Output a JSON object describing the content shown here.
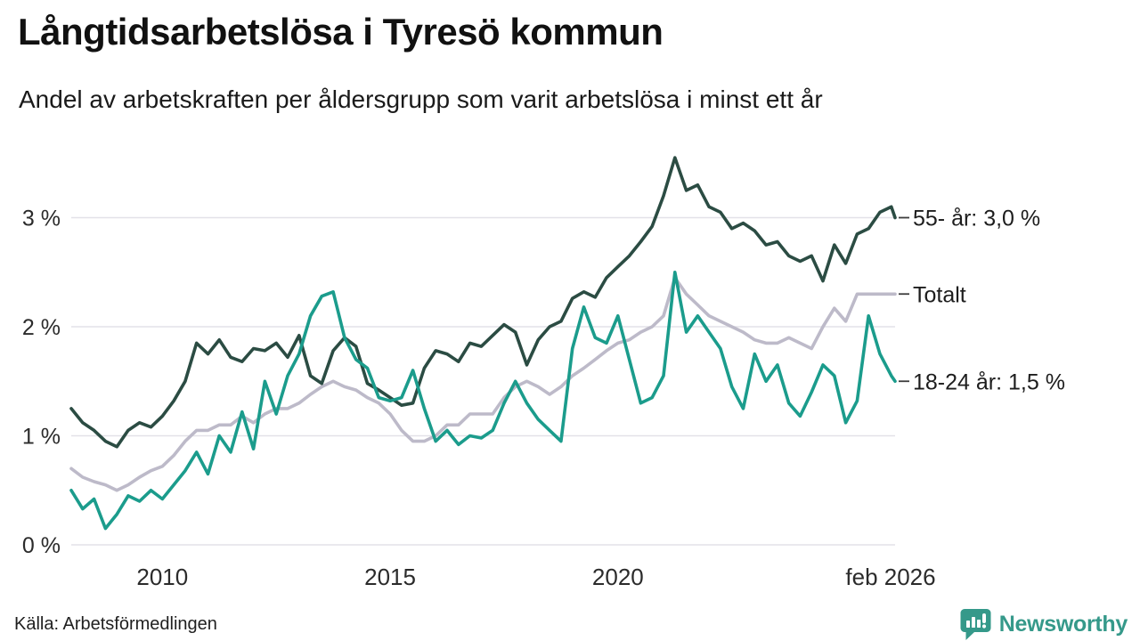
{
  "header": {
    "title": "Långtidsarbetslösa i Tyresö kommun",
    "subtitle": "Andel av arbetskraften per åldersgrupp som varit arbetslösa i minst ett år"
  },
  "footer": {
    "source": "Källa: Arbetsförmedlingen",
    "brand": "Newsworthy"
  },
  "colors": {
    "series_55": "#2b4c43",
    "series_total": "#bdbac9",
    "series_1824": "#1b9c8c",
    "grid": "#e3e2e8",
    "brand_teal": "#35998a",
    "end_dash": "#3c3c3c"
  },
  "chart_data": {
    "type": "line",
    "title": "Långtidsarbetslösa i Tyresö kommun",
    "subtitle": "Andel av arbetskraften per åldersgrupp som varit arbetslösa i minst ett år",
    "xlabel": "",
    "ylabel": "",
    "xlim": [
      2008.0,
      2026.083
    ],
    "ylim": [
      0,
      3.6
    ],
    "grid": "horizontal",
    "legend_position": "right-end-labels",
    "y_ticks": [
      {
        "value": 0,
        "label": "0 %"
      },
      {
        "value": 1,
        "label": "1 %"
      },
      {
        "value": 2,
        "label": "2 %"
      },
      {
        "value": 3,
        "label": "3 %"
      }
    ],
    "x_ticks": [
      {
        "value": 2010,
        "label": "2010"
      },
      {
        "value": 2015,
        "label": "2015"
      },
      {
        "value": 2020,
        "label": "2020"
      },
      {
        "value": 2026.083,
        "label": "feb 2026"
      }
    ],
    "x": [
      2008.0,
      2008.25,
      2008.5,
      2008.75,
      2009.0,
      2009.25,
      2009.5,
      2009.75,
      2010.0,
      2010.25,
      2010.5,
      2010.75,
      2011.0,
      2011.25,
      2011.5,
      2011.75,
      2012.0,
      2012.25,
      2012.5,
      2012.75,
      2013.0,
      2013.25,
      2013.5,
      2013.75,
      2014.0,
      2014.25,
      2014.5,
      2014.75,
      2015.0,
      2015.25,
      2015.5,
      2015.75,
      2016.0,
      2016.25,
      2016.5,
      2016.75,
      2017.0,
      2017.25,
      2017.5,
      2017.75,
      2018.0,
      2018.25,
      2018.5,
      2018.75,
      2019.0,
      2019.25,
      2019.5,
      2019.75,
      2020.0,
      2020.25,
      2020.5,
      2020.75,
      2021.0,
      2021.25,
      2021.5,
      2021.75,
      2022.0,
      2022.25,
      2022.5,
      2022.75,
      2023.0,
      2023.25,
      2023.5,
      2023.75,
      2024.0,
      2024.25,
      2024.5,
      2024.75,
      2025.0,
      2025.25,
      2025.5,
      2025.75,
      2026.0,
      2026.083
    ],
    "series": [
      {
        "name": "Totalt",
        "end_label": "Totalt",
        "end_value": 2.3,
        "color": "#bdbac9",
        "values": [
          0.7,
          0.62,
          0.58,
          0.55,
          0.5,
          0.55,
          0.62,
          0.68,
          0.72,
          0.82,
          0.95,
          1.05,
          1.05,
          1.1,
          1.1,
          1.18,
          1.12,
          1.2,
          1.25,
          1.25,
          1.3,
          1.38,
          1.45,
          1.5,
          1.45,
          1.42,
          1.35,
          1.3,
          1.2,
          1.05,
          0.95,
          0.95,
          1.0,
          1.1,
          1.1,
          1.2,
          1.2,
          1.2,
          1.35,
          1.45,
          1.5,
          1.45,
          1.38,
          1.45,
          1.55,
          1.62,
          1.7,
          1.78,
          1.85,
          1.88,
          1.95,
          2.0,
          2.1,
          2.45,
          2.3,
          2.2,
          2.1,
          2.05,
          2.0,
          1.95,
          1.88,
          1.85,
          1.85,
          1.9,
          1.85,
          1.8,
          2.0,
          2.17,
          2.05,
          2.3,
          2.3,
          2.3,
          2.3,
          2.3
        ]
      },
      {
        "name": "55- år",
        "end_label": "55- år: 3,0 %",
        "end_value": 3.0,
        "color": "#2b4c43",
        "values": [
          1.25,
          1.12,
          1.05,
          0.95,
          0.9,
          1.05,
          1.12,
          1.08,
          1.18,
          1.32,
          1.5,
          1.85,
          1.75,
          1.88,
          1.72,
          1.68,
          1.8,
          1.78,
          1.85,
          1.72,
          1.92,
          1.55,
          1.48,
          1.78,
          1.9,
          1.82,
          1.48,
          1.42,
          1.35,
          1.28,
          1.3,
          1.62,
          1.78,
          1.75,
          1.68,
          1.85,
          1.82,
          1.92,
          2.02,
          1.95,
          1.65,
          1.88,
          2.0,
          2.05,
          2.26,
          2.32,
          2.27,
          2.45,
          2.55,
          2.65,
          2.78,
          2.92,
          3.2,
          3.55,
          3.25,
          3.3,
          3.1,
          3.05,
          2.9,
          2.95,
          2.88,
          2.75,
          2.78,
          2.65,
          2.6,
          2.65,
          2.42,
          2.75,
          2.58,
          2.85,
          2.9,
          3.05,
          3.1,
          3.0
        ]
      },
      {
        "name": "18-24 år",
        "end_label": "18-24 år: 1,5 %",
        "end_value": 1.5,
        "color": "#1b9c8c",
        "values": [
          0.5,
          0.33,
          0.42,
          0.15,
          0.28,
          0.45,
          0.4,
          0.5,
          0.42,
          0.55,
          0.68,
          0.85,
          0.65,
          1.0,
          0.85,
          1.22,
          0.88,
          1.5,
          1.2,
          1.55,
          1.75,
          2.1,
          2.28,
          2.32,
          1.9,
          1.7,
          1.62,
          1.35,
          1.32,
          1.35,
          1.6,
          1.25,
          0.95,
          1.05,
          0.92,
          1.0,
          0.98,
          1.05,
          1.3,
          1.5,
          1.3,
          1.15,
          1.05,
          0.95,
          1.8,
          2.18,
          1.9,
          1.85,
          2.1,
          1.7,
          1.3,
          1.35,
          1.55,
          2.5,
          1.95,
          2.1,
          1.95,
          1.8,
          1.45,
          1.25,
          1.75,
          1.5,
          1.65,
          1.3,
          1.18,
          1.4,
          1.65,
          1.55,
          1.12,
          1.32,
          2.1,
          1.75,
          1.55,
          1.5
        ]
      }
    ]
  }
}
